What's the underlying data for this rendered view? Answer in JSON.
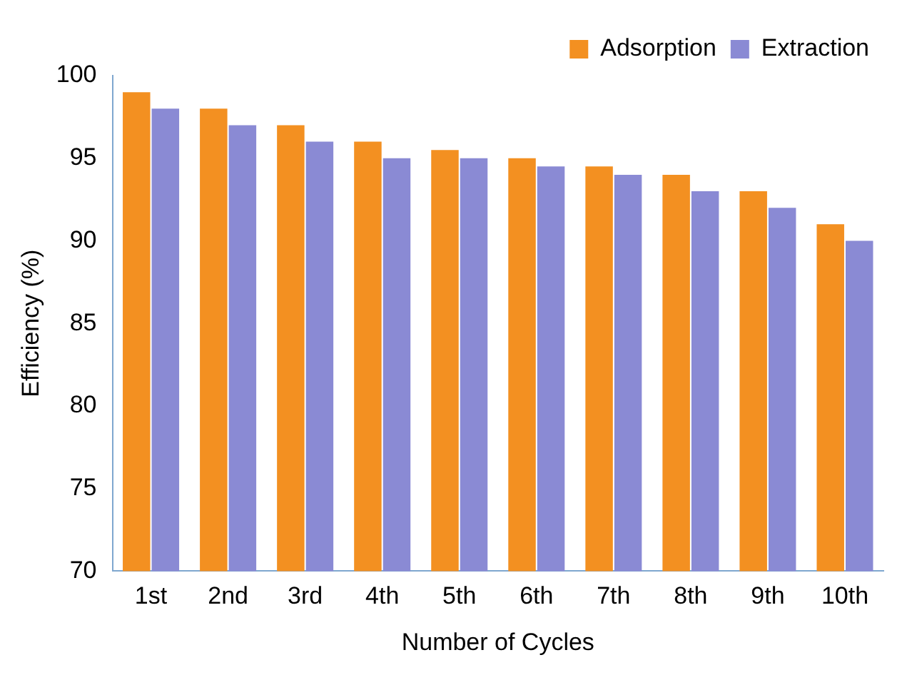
{
  "chart_data": {
    "type": "bar",
    "xlabel": "Number of Cycles",
    "ylabel": "Efficiency (%)",
    "categories": [
      "1st",
      "2nd",
      "3rd",
      "4th",
      "5th",
      "6th",
      "7th",
      "8th",
      "9th",
      "10th"
    ],
    "series": [
      {
        "name": "Adsorption",
        "color": "#f39021",
        "values": [
          99,
          98,
          97,
          96,
          95.5,
          95,
          94.5,
          94,
          93,
          91
        ]
      },
      {
        "name": "Extraction",
        "color": "#8a8ad4",
        "values": [
          98,
          97,
          96,
          95,
          95,
          94.5,
          94,
          93,
          92,
          90
        ]
      }
    ],
    "ylim": [
      70,
      100
    ],
    "yticks": [
      70,
      75,
      80,
      85,
      90,
      95,
      100
    ],
    "grid": false,
    "legend": "top right"
  }
}
